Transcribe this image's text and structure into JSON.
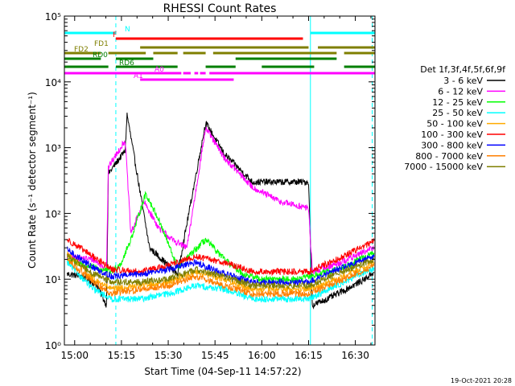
{
  "chart_data": {
    "type": "line",
    "title": "RHESSI Count Rates",
    "xlabel": "Start Time (04-Sep-11 14:57:22)",
    "ylabel": "Count Rate (s⁻¹ detector segment⁻¹)",
    "yscale": "log",
    "xlim": [
      14.945,
      16.605
    ],
    "ylim": [
      1,
      100000
    ],
    "x_unit": "hours",
    "x_ticks": [
      "15:00",
      "15:15",
      "15:30",
      "15:45",
      "16:00",
      "16:15",
      "16:30"
    ],
    "y_ticks": [
      "10⁰",
      "10¹",
      "10²",
      "10³",
      "10⁴",
      "10⁵"
    ],
    "legend_title": "Det 1f,3f,4f,5f,6f,9f",
    "legend_placement": "right",
    "footer_date": "19-Oct-2021 20:28",
    "series": [
      {
        "name": "3 - 6 keV",
        "color": "#000000",
        "x": [
          14.96,
          15.05,
          15.12,
          15.17,
          15.18,
          15.27,
          15.28,
          15.4,
          15.55,
          15.7,
          15.8,
          15.95,
          16.1,
          16.25,
          16.27,
          16.35,
          16.45,
          16.55,
          16.6
        ],
        "y": [
          12,
          11,
          8,
          4,
          400,
          900,
          3200,
          30,
          12,
          2400,
          800,
          300,
          300,
          300,
          4,
          5,
          7,
          10,
          13
        ]
      },
      {
        "name": "6 - 12 keV",
        "color": "#ff00ff",
        "x": [
          14.96,
          15.1,
          15.17,
          15.18,
          15.27,
          15.3,
          15.37,
          15.45,
          15.52,
          15.6,
          15.7,
          15.8,
          15.95,
          16.1,
          16.25,
          16.27,
          16.4,
          16.6
        ],
        "y": [
          22,
          20,
          14,
          500,
          1300,
          50,
          150,
          60,
          40,
          30,
          2000,
          700,
          250,
          150,
          120,
          13,
          17,
          30
        ]
      },
      {
        "name": "12 - 25 keV",
        "color": "#00ff00",
        "x": [
          14.96,
          15.1,
          15.2,
          15.25,
          15.3,
          15.38,
          15.45,
          15.55,
          15.7,
          15.8,
          15.9,
          16.0,
          16.2,
          16.4,
          16.6
        ],
        "y": [
          20,
          15,
          13,
          18,
          40,
          200,
          80,
          15,
          40,
          20,
          12,
          10,
          10,
          14,
          25
        ]
      },
      {
        "name": "25 - 50 keV",
        "color": "#00ffff",
        "x": [
          14.96,
          15.1,
          15.2,
          15.35,
          15.5,
          15.65,
          15.8,
          15.95,
          16.1,
          16.25,
          16.4,
          16.6
        ],
        "y": [
          18,
          7,
          5,
          5,
          6,
          8,
          7,
          5,
          5,
          5,
          8,
          15
        ]
      },
      {
        "name": "50 - 100 keV",
        "color": "#ffaa00",
        "x": [
          14.96,
          15.1,
          15.2,
          15.35,
          15.5,
          15.65,
          15.8,
          15.95,
          16.1,
          16.25,
          16.4,
          16.6
        ],
        "y": [
          25,
          10,
          7,
          8,
          9,
          13,
          10,
          7,
          7,
          7,
          10,
          18
        ]
      },
      {
        "name": "100 - 300 keV",
        "color": "#ff0000",
        "x": [
          14.96,
          15.1,
          15.2,
          15.35,
          15.5,
          15.65,
          15.8,
          15.95,
          16.1,
          16.25,
          16.4,
          16.6
        ],
        "y": [
          40,
          22,
          14,
          13,
          16,
          22,
          18,
          13,
          13,
          13,
          20,
          38
        ]
      },
      {
        "name": "300 - 800 keV",
        "color": "#0000ff",
        "x": [
          14.96,
          15.1,
          15.2,
          15.35,
          15.5,
          15.65,
          15.8,
          15.95,
          16.1,
          16.25,
          16.4,
          16.6
        ],
        "y": [
          28,
          15,
          11,
          12,
          14,
          18,
          12,
          9,
          9,
          9,
          14,
          22
        ]
      },
      {
        "name": "800 - 7000 keV",
        "color": "#ff7f00",
        "x": [
          14.96,
          15.1,
          15.2,
          15.35,
          15.5,
          15.65,
          15.8,
          15.95,
          16.1,
          16.25,
          16.4,
          16.6
        ],
        "y": [
          20,
          9,
          6,
          7,
          8,
          11,
          8,
          6,
          6,
          6,
          9,
          16
        ]
      },
      {
        "name": "7000 - 15000 keV",
        "color": "#7f7f00",
        "x": [
          14.96,
          15.1,
          15.2,
          15.35,
          15.5,
          15.65,
          15.8,
          15.95,
          16.1,
          16.25,
          16.4,
          16.6
        ],
        "y": [
          23,
          12,
          9,
          9,
          10,
          14,
          11,
          8,
          8,
          8,
          12,
          20
        ]
      }
    ],
    "flag_bars": [
      {
        "label": "N",
        "color": "#00ffff",
        "segments": [
          [
            14.945,
            15.22
          ],
          [
            16.26,
            16.605
          ]
        ]
      },
      {
        "label": "F",
        "color": "#ff0000",
        "segments": [
          [
            15.22,
            16.22
          ]
        ]
      },
      {
        "label": "FD1",
        "color": "#7f7f00",
        "segments": [
          [
            15.35,
            16.25
          ],
          [
            16.3,
            16.605
          ]
        ]
      },
      {
        "label": "FD2",
        "color": "#7f7f00",
        "segments": [
          [
            14.945,
            15.14
          ],
          [
            15.18,
            15.38
          ],
          [
            15.42,
            15.55
          ],
          [
            15.58,
            15.7
          ],
          [
            15.74,
            16.4
          ],
          [
            16.44,
            16.605
          ]
        ]
      },
      {
        "label": "RD0",
        "color": "#007f00",
        "segments": [
          [
            14.945,
            15.14
          ],
          [
            15.22,
            15.42
          ],
          [
            15.86,
            16.4
          ]
        ]
      },
      {
        "label": "RD6",
        "color": "#007f00",
        "segments": [
          [
            14.945,
            15.18
          ],
          [
            15.22,
            15.55
          ],
          [
            15.7,
            15.86
          ],
          [
            16.0,
            16.28
          ],
          [
            16.44,
            16.605
          ]
        ]
      },
      {
        "label": "A0",
        "color": "#ff00ff",
        "segments": [
          [
            14.945,
            15.57
          ],
          [
            15.58,
            15.62
          ],
          [
            15.64,
            15.66
          ],
          [
            15.67,
            15.7
          ],
          [
            15.72,
            16.605
          ]
        ]
      },
      {
        "label": "A1",
        "color": "#ff00ff",
        "segments": [
          [
            15.35,
            15.85
          ]
        ]
      }
    ],
    "vlines": [
      {
        "x": 14.945,
        "color": "#00ffff",
        "style": "solid"
      },
      {
        "x": 15.22,
        "color": "#00ffff",
        "style": "dashed"
      },
      {
        "x": 16.26,
        "color": "#00ffff",
        "style": "solid"
      },
      {
        "x": 16.59,
        "color": "#00ffff",
        "style": "dashed"
      }
    ]
  }
}
